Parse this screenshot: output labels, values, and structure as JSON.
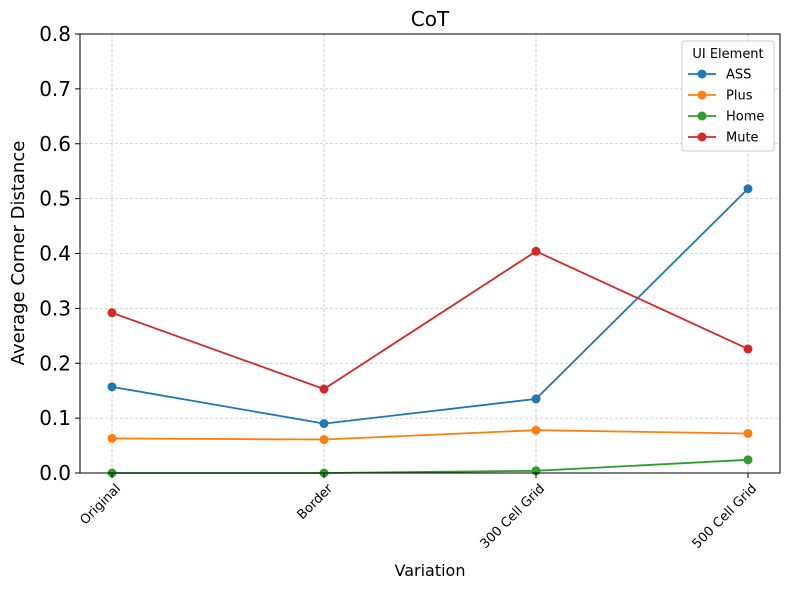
{
  "chart_data": {
    "type": "line",
    "title": "CoT",
    "xlabel": "Variation",
    "ylabel": "Average Corner Distance",
    "categories": [
      "Original",
      "Border",
      "300 Cell Grid",
      "500 Cell Grid"
    ],
    "ylim": [
      0,
      0.8
    ],
    "yticks": [
      "0.0",
      "0.1",
      "0.2",
      "0.3",
      "0.4",
      "0.5",
      "0.6",
      "0.7",
      "0.8"
    ],
    "grid": true,
    "legend": {
      "title": "UI Element",
      "placement": "top-right"
    },
    "series": [
      {
        "name": "ASS",
        "color": "#1f77b4",
        "values": [
          0.157,
          0.09,
          0.135,
          0.518
        ]
      },
      {
        "name": "Plus",
        "color": "#ff7f0e",
        "values": [
          0.063,
          0.061,
          0.078,
          0.072
        ]
      },
      {
        "name": "Home",
        "color": "#2ca02c",
        "values": [
          0.0,
          0.0,
          0.004,
          0.024
        ]
      },
      {
        "name": "Mute",
        "color": "#d62728",
        "values": [
          0.292,
          0.153,
          0.404,
          0.226
        ]
      }
    ]
  }
}
